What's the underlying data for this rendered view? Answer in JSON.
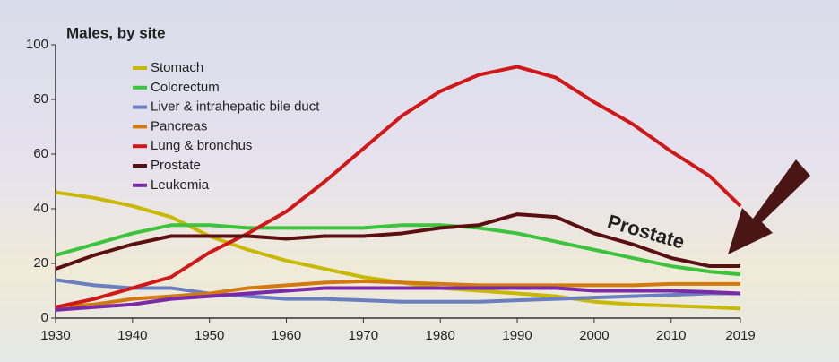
{
  "chart_data": {
    "type": "line",
    "title": "Males, by site",
    "annotation": "Prostate",
    "x": [
      1930,
      1935,
      1940,
      1945,
      1950,
      1955,
      1960,
      1965,
      1970,
      1975,
      1980,
      1985,
      1990,
      1995,
      2000,
      2005,
      2010,
      2015,
      2019
    ],
    "xlim": [
      1930,
      2019
    ],
    "xticks": [
      1930,
      1940,
      1950,
      1960,
      1970,
      1980,
      1990,
      2000,
      2010,
      2019
    ],
    "ylim": [
      0,
      100
    ],
    "yticks": [
      0,
      20,
      40,
      60,
      80,
      100
    ],
    "series": [
      {
        "name": "Stomach",
        "color": "#c9b800",
        "values": [
          46,
          44,
          41,
          37,
          30,
          25,
          21,
          18,
          15,
          13,
          11,
          10,
          9,
          8,
          6,
          5,
          4.5,
          4,
          3.5
        ]
      },
      {
        "name": "Colorectum",
        "color": "#3cc43c",
        "values": [
          23,
          27,
          31,
          34,
          34,
          33,
          33,
          33,
          33,
          34,
          34,
          33,
          31,
          28,
          25,
          22,
          19,
          17,
          16
        ]
      },
      {
        "name": "Liver & intrahepatic bile duct",
        "color": "#6a7fc0",
        "values": [
          14,
          12,
          11,
          11,
          9,
          8,
          7,
          7,
          6.5,
          6,
          6,
          6,
          6.5,
          7,
          7.5,
          8,
          8.5,
          9,
          9
        ]
      },
      {
        "name": "Pancreas",
        "color": "#d27a10",
        "values": [
          4,
          5,
          7,
          8,
          9,
          11,
          12,
          13,
          13.5,
          13,
          12.5,
          12,
          12,
          12,
          12,
          12,
          12.5,
          12.5,
          12.5
        ]
      },
      {
        "name": "Lung & bronchus",
        "color": "#d01818",
        "values": [
          4,
          7,
          11,
          15,
          24,
          31,
          39,
          50,
          62,
          74,
          83,
          89,
          92,
          88,
          79,
          71,
          61,
          52,
          41
        ]
      },
      {
        "name": "Prostate",
        "color": "#5a1010",
        "values": [
          18,
          23,
          27,
          30,
          30,
          30,
          29,
          30,
          30,
          31,
          33,
          34,
          38,
          37,
          31,
          27,
          22,
          19,
          19
        ]
      },
      {
        "name": "Leukemia",
        "color": "#7a2aa8",
        "values": [
          3,
          4,
          5,
          7,
          8,
          9,
          10,
          11,
          11,
          11,
          11,
          11,
          11,
          11,
          10,
          10,
          10,
          9.5,
          9
        ]
      }
    ]
  }
}
